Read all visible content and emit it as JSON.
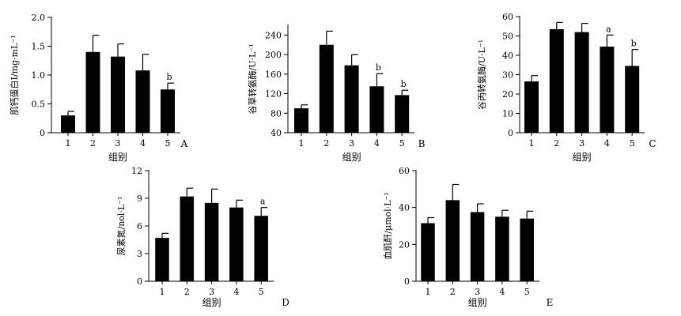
{
  "chart_data": [
    {
      "id": "A",
      "type": "bar",
      "panel_label": "A",
      "categories": [
        "1",
        "2",
        "3",
        "4",
        "5"
      ],
      "values": [
        0.3,
        1.4,
        1.32,
        1.08,
        0.75
      ],
      "errors": [
        0.07,
        0.29,
        0.22,
        0.28,
        0.11
      ],
      "annotations": [
        "",
        "",
        "",
        "",
        "b"
      ],
      "ylabel": "肌钙蛋白Ⅰ/mg·mL⁻¹",
      "xlabel": "组别",
      "ylim": [
        0,
        2.0
      ],
      "yticks": [
        "0",
        "0.5",
        "1.0",
        "1.5",
        "2.0"
      ]
    },
    {
      "id": "B",
      "type": "bar",
      "panel_label": "B",
      "categories": [
        "1",
        "2",
        "3",
        "4",
        "5"
      ],
      "values": [
        90,
        220,
        178,
        135,
        117
      ],
      "errors": [
        7,
        28,
        22,
        26,
        10
      ],
      "annotations": [
        "",
        "",
        "",
        "b",
        "b"
      ],
      "ylabel": "谷草转氨酶/U·L⁻¹",
      "xlabel": "组别",
      "ylim": [
        40,
        260
      ],
      "yticks": [
        "40",
        "80",
        "120",
        "160",
        "200",
        "240"
      ]
    },
    {
      "id": "C",
      "type": "bar",
      "panel_label": "C",
      "categories": [
        "1",
        "2",
        "3",
        "4",
        "5"
      ],
      "values": [
        26.5,
        53.5,
        52,
        44.5,
        34.5
      ],
      "errors": [
        3,
        3.5,
        4.5,
        6,
        8.5
      ],
      "annotations": [
        "",
        "",
        "",
        "a",
        "b"
      ],
      "ylabel": "谷丙转氨酶/U·L⁻¹",
      "xlabel": "组别",
      "ylim": [
        0,
        60
      ],
      "yticks": [
        "0",
        "10",
        "20",
        "30",
        "40",
        "50",
        "60"
      ]
    },
    {
      "id": "D",
      "type": "bar",
      "panel_label": "D",
      "categories": [
        "1",
        "2",
        "3",
        "4",
        "5"
      ],
      "values": [
        4.7,
        9.2,
        8.5,
        8.0,
        7.1
      ],
      "errors": [
        0.5,
        0.9,
        1.5,
        0.8,
        0.9
      ],
      "annotations": [
        "",
        "",
        "",
        "",
        "a"
      ],
      "ylabel": "尿素氮/nol·L⁻¹",
      "xlabel": "组别",
      "ylim": [
        0,
        12
      ],
      "yticks": [
        "0",
        "3",
        "6",
        "9",
        "12"
      ]
    },
    {
      "id": "E",
      "type": "bar",
      "panel_label": "E",
      "categories": [
        "1",
        "2",
        "3",
        "4",
        "5"
      ],
      "values": [
        31.5,
        44,
        37.5,
        35,
        34
      ],
      "errors": [
        3,
        8.5,
        4.5,
        3.5,
        4
      ],
      "annotations": [
        "",
        "",
        "",
        "",
        ""
      ],
      "ylabel": "血肌酐/μmol·L⁻¹",
      "xlabel": "组别",
      "ylim": [
        0,
        60
      ],
      "yticks": [
        "0",
        "20",
        "40",
        "60"
      ]
    }
  ]
}
